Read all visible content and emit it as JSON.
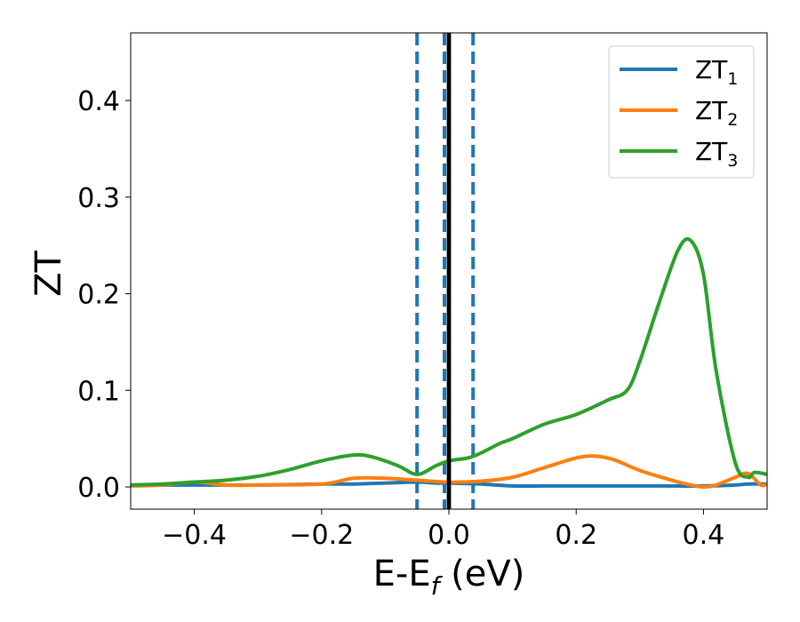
{
  "chart_data": {
    "type": "line",
    "title": "",
    "xlabel_main": "E-E",
    "xlabel_sub": "f",
    "xlabel_rest": " (eV)",
    "ylabel": "ZT",
    "xlim": [
      -0.5,
      0.5
    ],
    "ylim": [
      -0.023,
      0.47
    ],
    "xticks": [
      -0.4,
      -0.2,
      0.0,
      0.2,
      0.4
    ],
    "xtick_labels": [
      "−0.4",
      "−0.2",
      "0.0",
      "0.2",
      "0.4"
    ],
    "yticks": [
      0.0,
      0.1,
      0.2,
      0.3,
      0.4
    ],
    "ytick_labels": [
      "0.0",
      "0.1",
      "0.2",
      "0.3",
      "0.4"
    ],
    "grid": false,
    "legend_position": "top-right",
    "series": [
      {
        "name_main": "ZT",
        "name_sub": "1",
        "color": "#1f77b4",
        "x": [
          -0.5,
          -0.4,
          -0.3,
          -0.2,
          -0.15,
          -0.1,
          -0.05,
          -0.02,
          0.0,
          0.05,
          0.1,
          0.15,
          0.2,
          0.25,
          0.3,
          0.35,
          0.4,
          0.45,
          0.47,
          0.5
        ],
        "y": [
          0.002,
          0.002,
          0.002,
          0.003,
          0.003,
          0.004,
          0.005,
          0.004,
          0.004,
          0.003,
          0.001,
          0.001,
          0.001,
          0.001,
          0.001,
          0.001,
          0.001,
          0.002,
          0.003,
          0.003
        ]
      },
      {
        "name_main": "ZT",
        "name_sub": "2",
        "color": "#ff7f0e",
        "x": [
          -0.5,
          -0.45,
          -0.4,
          -0.35,
          -0.3,
          -0.2,
          -0.15,
          -0.1,
          -0.05,
          0.0,
          0.05,
          0.1,
          0.15,
          0.2,
          0.23,
          0.26,
          0.3,
          0.35,
          0.38,
          0.4,
          0.42,
          0.45,
          0.47,
          0.49,
          0.5
        ],
        "y": [
          0.001,
          0.002,
          0.005,
          0.002,
          0.002,
          0.003,
          0.009,
          0.009,
          0.007,
          0.005,
          0.006,
          0.01,
          0.02,
          0.03,
          0.032,
          0.028,
          0.017,
          0.007,
          0.002,
          0.0,
          0.002,
          0.01,
          0.014,
          0.002,
          0.003
        ]
      },
      {
        "name_main": "ZT",
        "name_sub": "3",
        "color": "#2ca02c",
        "x": [
          -0.5,
          -0.45,
          -0.4,
          -0.35,
          -0.3,
          -0.25,
          -0.2,
          -0.15,
          -0.12,
          -0.08,
          -0.05,
          -0.02,
          0.0,
          0.03,
          0.05,
          0.08,
          0.1,
          0.15,
          0.2,
          0.25,
          0.28,
          0.3,
          0.33,
          0.36,
          0.38,
          0.4,
          0.42,
          0.45,
          0.47,
          0.48,
          0.5
        ],
        "y": [
          0.002,
          0.003,
          0.005,
          0.007,
          0.011,
          0.018,
          0.027,
          0.033,
          0.031,
          0.022,
          0.013,
          0.022,
          0.027,
          0.03,
          0.035,
          0.045,
          0.05,
          0.065,
          0.075,
          0.09,
          0.1,
          0.13,
          0.19,
          0.245,
          0.255,
          0.22,
          0.12,
          0.025,
          0.01,
          0.015,
          0.013
        ]
      }
    ],
    "vlines": [
      {
        "x": -0.05,
        "style": "dashed",
        "color": "#1f77b4"
      },
      {
        "x": -0.007,
        "style": "dashed",
        "color": "#1f77b4"
      },
      {
        "x": 0.038,
        "style": "dashed",
        "color": "#1f77b4"
      },
      {
        "x": 0.0,
        "style": "solid",
        "color": "#000000"
      }
    ]
  }
}
